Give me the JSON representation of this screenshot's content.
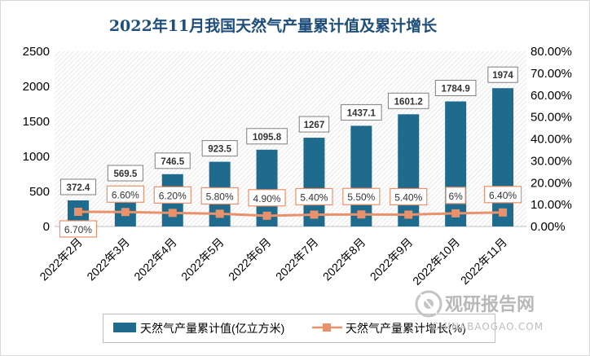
{
  "chart_data": {
    "type": "bar+line",
    "title": "2022年11月我国天然气产量累计值及累计增长",
    "categories": [
      "2022年2月",
      "2022年3月",
      "2022年4月",
      "2022年5月",
      "2022年6月",
      "2022年7月",
      "2022年8月",
      "2022年9月",
      "2022年10月",
      "2022年11月"
    ],
    "bar_series": {
      "name": "天然气产量累计值(亿立方米)",
      "values": [
        372.4,
        569.5,
        746.5,
        923.5,
        1095.8,
        1267,
        1437.1,
        1601.2,
        1784.9,
        1974
      ],
      "labels": [
        "372.4",
        "569.5",
        "746.5",
        "923.5",
        "1095.8",
        "1267",
        "1437.1",
        "1601.2",
        "1784.9",
        "1974"
      ],
      "color": "#1f6b8e"
    },
    "line_series": {
      "name": "天然气产量累计增长(%)",
      "values": [
        6.7,
        6.6,
        6.2,
        5.8,
        4.9,
        5.4,
        5.5,
        5.4,
        6.0,
        6.4
      ],
      "labels": [
        "6.70%",
        "6.60%",
        "6.20%",
        "5.80%",
        "4.90%",
        "5.40%",
        "5.50%",
        "5.40%",
        "6%",
        "6.40%"
      ],
      "color": "#e8916a"
    },
    "y_left": {
      "min": 0,
      "max": 2500,
      "ticks": [
        "0",
        "500",
        "1000",
        "1500",
        "2000",
        "2500"
      ]
    },
    "y_right": {
      "min": 0,
      "max": 80,
      "ticks": [
        "0.00%",
        "10.00%",
        "20.00%",
        "30.00%",
        "40.00%",
        "50.00%",
        "60.00%",
        "70.00%",
        "80.00%"
      ]
    },
    "legend_position": "bottom"
  },
  "watermark": {
    "brand": "观研报告网",
    "url": "CHINABAOGAO.COM"
  },
  "colors": {
    "bar": "#1f6b8e",
    "line": "#e8916a",
    "title": "#1e4e79",
    "label_border": "#e8916a"
  }
}
